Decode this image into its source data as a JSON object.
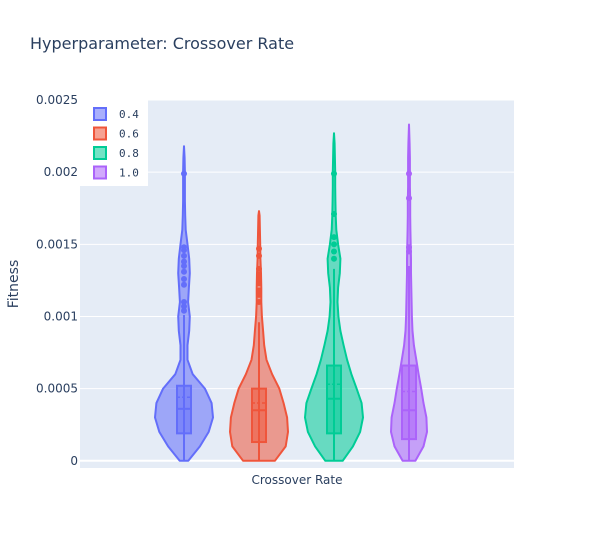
{
  "chart_data": {
    "type": "violin",
    "title": "Hyperparameter: Crossover Rate",
    "xlabel": "Crossover Rate",
    "ylabel": "Fitness",
    "ylim": [
      -5e-05,
      0.0025
    ],
    "yticks": [
      0,
      0.0005,
      0.001,
      0.0015,
      0.002,
      0.0025
    ],
    "ytick_labels": [
      "0",
      "0.0005",
      "0.001",
      "0.0015",
      "0.002",
      "0.0025"
    ],
    "legend_position": "top-left",
    "plot_background": "#e5ecf6",
    "series": [
      {
        "name": "0.4",
        "color": "#636efa",
        "fill": "rgba(99,110,250,0.55)",
        "box": {
          "q1": 0.00019,
          "median": 0.00036,
          "mean": 0.00044,
          "q3": 0.00052,
          "lower": 0.0,
          "upper": 0.00101
        },
        "violin_range": [
          0.0,
          0.00218
        ],
        "density": [
          [
            0.0,
            0.15
          ],
          [
            0.0001,
            0.55
          ],
          [
            0.0002,
            0.85
          ],
          [
            0.0003,
            1.0
          ],
          [
            0.0004,
            0.95
          ],
          [
            0.0005,
            0.72
          ],
          [
            0.0006,
            0.3
          ],
          [
            0.0007,
            0.12
          ],
          [
            0.0008,
            0.12
          ],
          [
            0.0009,
            0.18
          ],
          [
            0.001,
            0.2
          ],
          [
            0.0011,
            0.14
          ],
          [
            0.0012,
            0.17
          ],
          [
            0.0013,
            0.2
          ],
          [
            0.0014,
            0.18
          ],
          [
            0.0015,
            0.12
          ],
          [
            0.0016,
            0.06
          ],
          [
            0.0017,
            0.04
          ],
          [
            0.0018,
            0.03
          ],
          [
            0.0019,
            0.03
          ],
          [
            0.002,
            0.03
          ],
          [
            0.0021,
            0.02
          ],
          [
            0.00218,
            0.0
          ]
        ],
        "outliers": [
          0.00104,
          0.00107,
          0.0011,
          0.00122,
          0.00126,
          0.00131,
          0.00135,
          0.00138,
          0.00142,
          0.00146,
          0.00148,
          0.00199
        ]
      },
      {
        "name": "0.6",
        "color": "#ef553b",
        "fill": "rgba(239,85,59,0.55)",
        "box": {
          "q1": 0.00013,
          "median": 0.00035,
          "mean": 0.0004,
          "q3": 0.0005,
          "lower": 0.0,
          "upper": 0.00096
        },
        "violin_range": [
          0.0,
          0.00173
        ],
        "density": [
          [
            0.0,
            0.55
          ],
          [
            0.0001,
            0.92
          ],
          [
            0.0002,
            1.0
          ],
          [
            0.0003,
            0.97
          ],
          [
            0.0004,
            0.85
          ],
          [
            0.0005,
            0.7
          ],
          [
            0.0006,
            0.45
          ],
          [
            0.0007,
            0.26
          ],
          [
            0.0008,
            0.18
          ],
          [
            0.0009,
            0.14
          ],
          [
            0.001,
            0.1
          ],
          [
            0.0011,
            0.08
          ],
          [
            0.0012,
            0.08
          ],
          [
            0.0013,
            0.07
          ],
          [
            0.0014,
            0.05
          ],
          [
            0.0015,
            0.04
          ],
          [
            0.0016,
            0.03
          ],
          [
            0.0017,
            0.02
          ],
          [
            0.00173,
            0.0
          ]
        ],
        "outliers": [
          0.0011,
          0.00115,
          0.00118,
          0.00123,
          0.00126,
          0.00129,
          0.00133,
          0.00142,
          0.00147
        ]
      },
      {
        "name": "0.8",
        "color": "#00cc96",
        "fill": "rgba(0,204,150,0.55)",
        "box": {
          "q1": 0.00019,
          "median": 0.00043,
          "mean": 0.00053,
          "q3": 0.00066,
          "lower": 0.0,
          "upper": 0.00133
        },
        "violin_range": [
          0.0,
          0.00227
        ],
        "density": [
          [
            0.0,
            0.3
          ],
          [
            0.0001,
            0.65
          ],
          [
            0.0002,
            0.9
          ],
          [
            0.0003,
            1.0
          ],
          [
            0.0004,
            0.95
          ],
          [
            0.0005,
            0.78
          ],
          [
            0.0006,
            0.6
          ],
          [
            0.0007,
            0.45
          ],
          [
            0.0008,
            0.33
          ],
          [
            0.0009,
            0.22
          ],
          [
            0.001,
            0.15
          ],
          [
            0.0011,
            0.12
          ],
          [
            0.0012,
            0.14
          ],
          [
            0.0013,
            0.2
          ],
          [
            0.0014,
            0.22
          ],
          [
            0.0015,
            0.14
          ],
          [
            0.0016,
            0.08
          ],
          [
            0.0017,
            0.06
          ],
          [
            0.0018,
            0.05
          ],
          [
            0.0019,
            0.04
          ],
          [
            0.002,
            0.04
          ],
          [
            0.0021,
            0.03
          ],
          [
            0.0022,
            0.02
          ],
          [
            0.00227,
            0.0
          ]
        ],
        "outliers": [
          0.0014,
          0.00145,
          0.0015,
          0.00155,
          0.00171,
          0.00199
        ]
      },
      {
        "name": "1.0",
        "color": "#ab63fa",
        "fill": "rgba(171,99,250,0.55)",
        "box": {
          "q1": 0.00015,
          "median": 0.00035,
          "mean": 0.00048,
          "q3": 0.00066,
          "lower": 0.0,
          "upper": 0.00135
        },
        "violin_range": [
          0.0,
          0.00233
        ],
        "density": [
          [
            0.0,
            0.22
          ],
          [
            0.0001,
            0.5
          ],
          [
            0.0002,
            0.62
          ],
          [
            0.0003,
            0.6
          ],
          [
            0.0004,
            0.5
          ],
          [
            0.0005,
            0.42
          ],
          [
            0.0006,
            0.33
          ],
          [
            0.0007,
            0.25
          ],
          [
            0.0008,
            0.17
          ],
          [
            0.0009,
            0.12
          ],
          [
            0.001,
            0.1
          ],
          [
            0.0011,
            0.09
          ],
          [
            0.0012,
            0.08
          ],
          [
            0.0013,
            0.07
          ],
          [
            0.0014,
            0.07
          ],
          [
            0.0015,
            0.06
          ],
          [
            0.0016,
            0.05
          ],
          [
            0.0017,
            0.04
          ],
          [
            0.0018,
            0.04
          ],
          [
            0.0019,
            0.03
          ],
          [
            0.002,
            0.03
          ],
          [
            0.0021,
            0.03
          ],
          [
            0.0022,
            0.02
          ],
          [
            0.00233,
            0.0
          ]
        ],
        "outliers": [
          0.00145,
          0.00148,
          0.00182,
          0.00199
        ]
      }
    ]
  }
}
